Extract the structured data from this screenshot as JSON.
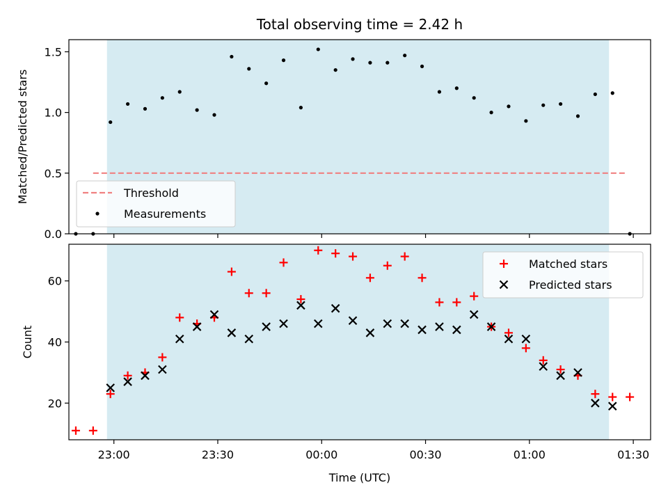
{
  "chart_data": [
    {
      "type": "scatter",
      "title": "Total observing time = 2.42 h",
      "xlabel": "",
      "ylabel": "Matched/Predicted stars",
      "ylim": [
        0.0,
        1.6
      ],
      "yticks": [
        0.0,
        0.5,
        1.0,
        1.5
      ],
      "ytick_labels": [
        "0.0",
        "0.5",
        "1.0",
        "1.5"
      ],
      "xlim": [
        "22:47",
        "01:35"
      ],
      "xticks": [
        "23:00",
        "23:30",
        "00:00",
        "00:30",
        "01:00",
        "01:30"
      ],
      "shaded_span": [
        "22:58",
        "01:23"
      ],
      "threshold": {
        "name": "Threshold",
        "value": 0.5,
        "x_range": [
          "22:54",
          "01:28"
        ],
        "color": "#f08080"
      },
      "legend_position": "lower-left",
      "series": [
        {
          "name": "Measurements",
          "marker": "dot",
          "color": "#000000",
          "x": [
            "22:54",
            "22:59",
            "23:04",
            "23:09",
            "23:14",
            "23:19",
            "23:24",
            "23:29",
            "23:34",
            "23:39",
            "23:44",
            "23:49",
            "23:54",
            "23:59",
            "00:04",
            "00:09",
            "00:14",
            "00:19",
            "00:24",
            "00:29",
            "00:34",
            "00:39",
            "00:44",
            "00:49",
            "00:54",
            "00:59",
            "01:04",
            "01:09",
            "01:14",
            "01:19",
            "01:24",
            "01:29"
          ],
          "y": [
            0.0,
            0.92,
            1.07,
            1.03,
            1.12,
            1.17,
            1.02,
            0.98,
            1.46,
            1.36,
            1.24,
            1.43,
            1.04,
            1.52,
            1.35,
            1.44,
            1.41,
            1.41,
            1.47,
            1.38,
            1.17,
            1.2,
            1.12,
            1.0,
            1.05,
            0.93,
            1.06,
            1.07,
            0.97,
            1.15,
            1.16,
            0.0
          ],
          "extra_points": {
            "x": [
              "22:49"
            ],
            "y": [
              0.0
            ]
          }
        }
      ]
    },
    {
      "type": "scatter",
      "title": "",
      "xlabel": "Time (UTC)",
      "ylabel": "Count",
      "ylim": [
        8,
        72
      ],
      "yticks": [
        20,
        40,
        60
      ],
      "ytick_labels": [
        "20",
        "40",
        "60"
      ],
      "xlim": [
        "22:47",
        "01:35"
      ],
      "xticks": [
        "23:00",
        "23:30",
        "00:00",
        "00:30",
        "01:00",
        "01:30"
      ],
      "xtick_labels": [
        "23:00",
        "23:30",
        "00:00",
        "00:30",
        "01:00",
        "01:30"
      ],
      "shaded_span": [
        "22:58",
        "01:23"
      ],
      "legend_position": "upper-right",
      "series": [
        {
          "name": "Matched stars",
          "marker": "plus",
          "color": "#ff0000",
          "x": [
            "22:49",
            "22:54",
            "22:59",
            "23:04",
            "23:09",
            "23:14",
            "23:19",
            "23:24",
            "23:29",
            "23:34",
            "23:39",
            "23:44",
            "23:49",
            "23:54",
            "23:59",
            "00:04",
            "00:09",
            "00:14",
            "00:19",
            "00:24",
            "00:29",
            "00:34",
            "00:39",
            "00:44",
            "00:49",
            "00:54",
            "00:59",
            "01:04",
            "01:09",
            "01:14",
            "01:19",
            "01:24",
            "01:29"
          ],
          "y": [
            11,
            11,
            23,
            29,
            30,
            35,
            48,
            46,
            48,
            63,
            56,
            56,
            66,
            54,
            70,
            69,
            68,
            61,
            65,
            68,
            61,
            53,
            53,
            55,
            45,
            43,
            38,
            34,
            31,
            29,
            23,
            22,
            22
          ]
        },
        {
          "name": "Predicted stars",
          "marker": "x",
          "color": "#000000",
          "x": [
            "22:59",
            "23:04",
            "23:09",
            "23:14",
            "23:19",
            "23:24",
            "23:29",
            "23:34",
            "23:39",
            "23:44",
            "23:49",
            "23:54",
            "23:59",
            "00:04",
            "00:09",
            "00:14",
            "00:19",
            "00:24",
            "00:29",
            "00:34",
            "00:39",
            "00:44",
            "00:49",
            "00:54",
            "00:59",
            "01:04",
            "01:09",
            "01:14",
            "01:19",
            "01:24"
          ],
          "y": [
            25,
            27,
            29,
            31,
            41,
            45,
            49,
            43,
            41,
            45,
            46,
            52,
            46,
            51,
            47,
            43,
            46,
            46,
            44,
            45,
            44,
            49,
            45,
            41,
            41,
            32,
            29,
            30,
            20,
            19
          ]
        }
      ]
    }
  ]
}
